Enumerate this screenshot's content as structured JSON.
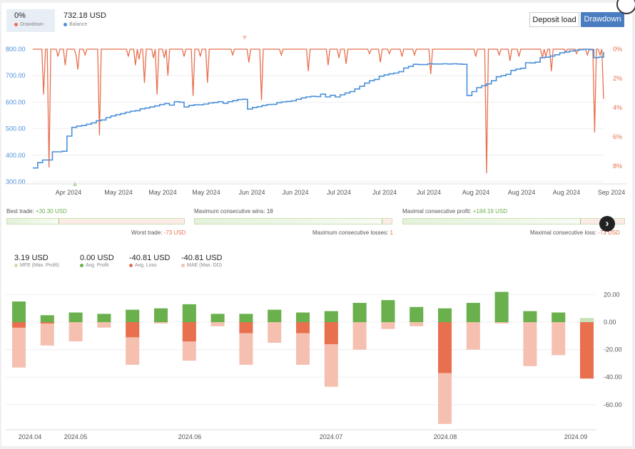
{
  "summary": {
    "drawdown_value": "0%",
    "drawdown_label": "Drawdown",
    "balance_value": "732.18 USD",
    "balance_label": "Balance"
  },
  "buttons": {
    "deposit_load": "Deposit load",
    "drawdown": "Drawdown"
  },
  "colors": {
    "balance": "#4a90d9",
    "drawdown": "#e8704f",
    "profit": "#6ab04c",
    "loss": "#e8704f",
    "mae": "#f5c0b0",
    "mfe": "#c7e0b5"
  },
  "stats": {
    "best_trade_label": "Best trade:",
    "best_trade_value": "+30.30 USD",
    "worst_trade_label": "Worst trade:",
    "worst_trade_value": "-73 USD",
    "max_cons_wins_label": "Maximum consecutive wins:",
    "max_cons_wins_value": "18",
    "max_cons_losses_label": "Maximum consecutive losses:",
    "max_cons_losses_value": "1",
    "max_cons_profit_label": "Maximal consecutive profit:",
    "max_cons_profit_value": "+184.19 USD",
    "max_cons_loss_label": "Maximal consecutive loss:",
    "max_cons_loss_value": "-73 USD",
    "best_fraction": 0.29,
    "wins_fraction": 0.95,
    "profit_fraction": 0.8
  },
  "legend2": {
    "mfe_value": "3.19 USD",
    "mfe_label": "MFE (Max. Profit)",
    "avg_profit_value": "0.00 USD",
    "avg_profit_label": "Avg. Profit",
    "avg_loss_value": "-40.81 USD",
    "avg_loss_label": "Avg. Loss",
    "mae_value": "-40.81 USD",
    "mae_label": "MAE (Max. DD)"
  },
  "chart_data": [
    {
      "type": "line",
      "series": [
        {
          "name": "Balance",
          "axis": "left",
          "y": [
            352,
            372,
            382,
            382,
            413,
            413,
            415,
            472,
            505,
            510,
            512,
            517,
            522,
            530,
            533,
            542,
            548,
            553,
            557,
            562,
            566,
            568,
            575,
            578,
            582,
            586,
            591,
            595,
            589,
            602,
            600,
            582,
            588,
            590,
            590,
            593,
            597,
            599,
            602,
            596,
            602,
            606,
            610,
            611,
            574,
            580,
            583,
            588,
            591,
            592,
            598,
            601,
            603,
            605,
            611,
            616,
            620,
            622,
            621,
            630,
            620,
            626,
            620,
            628,
            635,
            640,
            650,
            660,
            672,
            681,
            686,
            698,
            703,
            707,
            710,
            715,
            729,
            735,
            743,
            742,
            742,
            745,
            744,
            744,
            745,
            744,
            745,
            744,
            743,
            625,
            640,
            655,
            662,
            669,
            681,
            696,
            700,
            705,
            720,
            725,
            728,
            749,
            748,
            751,
            768,
            770,
            774,
            779,
            786,
            789,
            793,
            796,
            798,
            800,
            798,
            768,
            770,
            790
          ]
        },
        {
          "name": "Drawdown",
          "axis": "right",
          "y": [
            0,
            0,
            0,
            0,
            0,
            0,
            3.1,
            0,
            0,
            8.1,
            0,
            0,
            0,
            0,
            0.5,
            0,
            0,
            0,
            1.1,
            0,
            0,
            0,
            0,
            0,
            0.4,
            1.4,
            0,
            0,
            0,
            0.4,
            0,
            0,
            0,
            0,
            0,
            0,
            0,
            5.9,
            0,
            0,
            0,
            0,
            0,
            0,
            0,
            0,
            0,
            0,
            0,
            0,
            0,
            0,
            0,
            0.5,
            0,
            0,
            0,
            1.1,
            0,
            0.7,
            0,
            0,
            2.3,
            0,
            0,
            0,
            0,
            0.6,
            0,
            3.1,
            0,
            0,
            0,
            0.6,
            0,
            1.8,
            0,
            0,
            0,
            0,
            0,
            0,
            0,
            0,
            0.5,
            0,
            0,
            0,
            0,
            3.2,
            0,
            0,
            0,
            0.5,
            0,
            0,
            0,
            2.3,
            0,
            0,
            0,
            0,
            0,
            0,
            0,
            0,
            0,
            0,
            0,
            0,
            0,
            0.4,
            0,
            0,
            0,
            0,
            0,
            0,
            0,
            0,
            0.9,
            0,
            0,
            0,
            0,
            0,
            0,
            3.5,
            0,
            0,
            0,
            0,
            0,
            0,
            0,
            0,
            0,
            0,
            0.4,
            0,
            0,
            0,
            0,
            0,
            0,
            0,
            0,
            0,
            0,
            0,
            0,
            0,
            0,
            1.5,
            0,
            0,
            0,
            0,
            0,
            0,
            0,
            0,
            0,
            0,
            1.1,
            0,
            0,
            0,
            0,
            0,
            0.6,
            0,
            0,
            0,
            1.0,
            0,
            0,
            0,
            0,
            0,
            0,
            0,
            0,
            0,
            0,
            0,
            0,
            0.3,
            0,
            0,
            0,
            0,
            0,
            0.9,
            0,
            0,
            0,
            0,
            0.3,
            0,
            0,
            0,
            0,
            0,
            0,
            0.5,
            0,
            0,
            0,
            0,
            0,
            0,
            0.4,
            0,
            0,
            0,
            0,
            0,
            0,
            0,
            0,
            1.7,
            0,
            0,
            0,
            0,
            0,
            0,
            0,
            0,
            0,
            0,
            0,
            0,
            0,
            0,
            0,
            0,
            0,
            0,
            0,
            0,
            0,
            0,
            0,
            0,
            0.5,
            0,
            0,
            0,
            0,
            0,
            8.5,
            0,
            0,
            0,
            0,
            0,
            0,
            0.4,
            0,
            0,
            0,
            0,
            0,
            0.8,
            0,
            0,
            0,
            0,
            0.5,
            0,
            0,
            0,
            0,
            0,
            0,
            0,
            0,
            0,
            0,
            0,
            0,
            0.6,
            0,
            0.5,
            0,
            0,
            1.5,
            0,
            0,
            0,
            0,
            0,
            0,
            0,
            0.2,
            0,
            0,
            0,
            0,
            0,
            0.3,
            0,
            0,
            0,
            0,
            0,
            0.4,
            0,
            0,
            0,
            5.7,
            0,
            0,
            0.4,
            0,
            3.4
          ]
        }
      ],
      "x_ticks": [
        "Apr 2024",
        "May 2024",
        "May 2024",
        "May 2024",
        "Jun 2024",
        "Jun 2024",
        "Jul 2024",
        "Jul 2024",
        "Jul 2024",
        "Aug 2024",
        "Aug 2024",
        "Aug 2024",
        "Sep 2024"
      ],
      "y_left_ticks": [
        "800.00",
        "700.00",
        "600.00",
        "500.00",
        "400.00",
        "300.00"
      ],
      "y_right_ticks": [
        "0%",
        "2%",
        "4%",
        "6%",
        "8%"
      ],
      "ylim_left": [
        300,
        800
      ],
      "ylim_right": [
        0,
        9
      ]
    },
    {
      "type": "bar",
      "categories": [
        "w1",
        "w2",
        "w3",
        "w4",
        "w5",
        "w6",
        "w7",
        "w8",
        "w9",
        "w10",
        "w11",
        "w12",
        "w13",
        "w14",
        "w15",
        "w16",
        "w17",
        "w18",
        "w19",
        "w20",
        "w21"
      ],
      "series": [
        {
          "name": "MFE (Max. Profit)",
          "values": [
            15,
            5,
            7,
            6,
            9,
            10,
            13,
            6,
            6,
            9,
            7,
            8,
            14,
            16,
            11,
            10,
            14,
            22,
            8,
            7,
            3
          ]
        },
        {
          "name": "Avg. Profit",
          "values": [
            15,
            5,
            7,
            6,
            9,
            10,
            13,
            6,
            6,
            9,
            7,
            8,
            14,
            16,
            11,
            10,
            14,
            22,
            8,
            7,
            0
          ]
        },
        {
          "name": "Avg. Loss",
          "values": [
            -4,
            -1,
            0,
            0,
            -11,
            0,
            -14,
            0,
            -8,
            0,
            -8,
            -16,
            0,
            0,
            0,
            -37,
            0,
            0,
            0,
            0,
            -41
          ]
        },
        {
          "name": "MAE (Max. DD)",
          "values": [
            -33,
            -17,
            -14,
            -4,
            -31,
            -1,
            -28,
            -3,
            -31,
            -15,
            -31,
            -47,
            -20,
            -5,
            -3,
            -74,
            -20,
            -1,
            -32,
            -24,
            -41
          ]
        }
      ],
      "x_ticks": [
        "2024.04",
        "2024.05",
        "2024.06",
        "2024.07",
        "2024.08",
        "2024.09"
      ],
      "y_ticks": [
        "20.00",
        "0.00",
        "-20.00",
        "-40.00",
        "-60.00"
      ],
      "ylim": [
        -80,
        25
      ]
    }
  ]
}
